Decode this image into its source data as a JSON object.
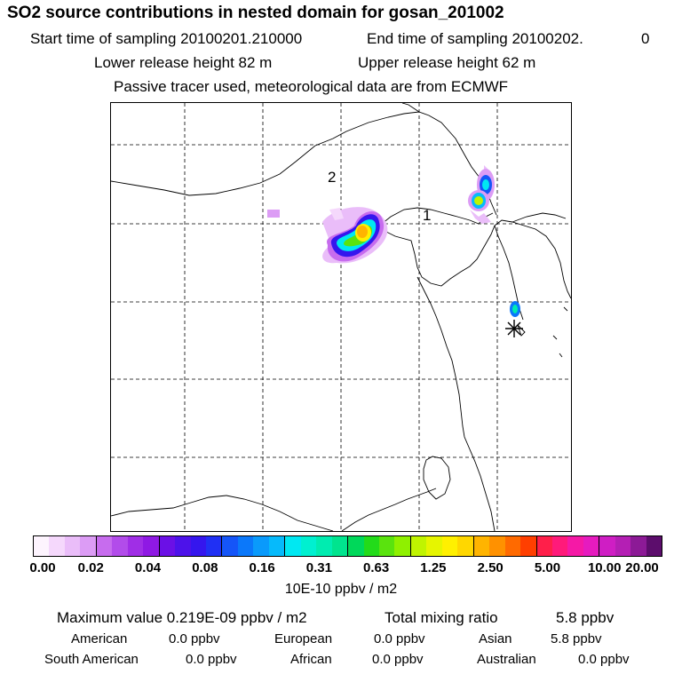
{
  "header": {
    "title": "SO2 source contributions in nested domain for gosan_201002",
    "start_label": "Start time of sampling 20100201.210000",
    "end_label": "End time of sampling 20100202.",
    "end_value": "0",
    "lower_release": "Lower release height   82 m",
    "upper_release": "Upper release height   62 m",
    "tracer_note": "Passive tracer used, meteorological data are from ECMWF"
  },
  "map": {
    "source_labels": [
      {
        "id": "source-label-1",
        "text": "1"
      },
      {
        "id": "source-label-2",
        "text": "2"
      }
    ],
    "receptor": "receptor-star-icon"
  },
  "colorbar": {
    "tick_labels": [
      "0.00",
      "0.02",
      "0.04",
      "0.08",
      "0.16",
      "0.31",
      "0.63",
      "1.25",
      "2.50",
      "5.00",
      "10.00",
      "20.00"
    ],
    "units": "10E-10 ppbv / m2",
    "colors": [
      "#fdf4fe",
      "#f5d8fc",
      "#eabdf9",
      "#dc9cf5",
      "#c76cee",
      "#b24cea",
      "#a02ee6",
      "#8f19e4",
      "#6b10e6",
      "#4d12ea",
      "#3516ee",
      "#2030f4",
      "#1555f8",
      "#0b78fa",
      "#0a9afb",
      "#06bafb",
      "#00e8f2",
      "#00f0d0",
      "#00ecb0",
      "#00e48e",
      "#00d85a",
      "#23db1a",
      "#5ae30e",
      "#8ff000",
      "#c0f400",
      "#e6f500",
      "#fff000",
      "#ffd700",
      "#ffb400",
      "#ff9100",
      "#ff6a00",
      "#ff3f00",
      "#ff1f4a",
      "#ff1a7a",
      "#f519a6",
      "#e61bbf",
      "#cf1ec4",
      "#b41fb4",
      "#8c1a96",
      "#5c0d6c"
    ]
  },
  "summary": {
    "max_label": "Maximum value  0.219E-09 ppbv / m2",
    "total_label": "Total mixing ratio",
    "total_value": "5.8 ppbv",
    "regions": [
      {
        "name": "American",
        "value": "0.0 ppbv"
      },
      {
        "name": "European",
        "value": "0.0 ppbv"
      },
      {
        "name": "Asian",
        "value": "5.8 ppbv"
      },
      {
        "name": "South American",
        "value": "0.0 ppbv"
      },
      {
        "name": "African",
        "value": "0.0 ppbv"
      },
      {
        "name": "Australian",
        "value": "0.0 ppbv"
      }
    ]
  }
}
